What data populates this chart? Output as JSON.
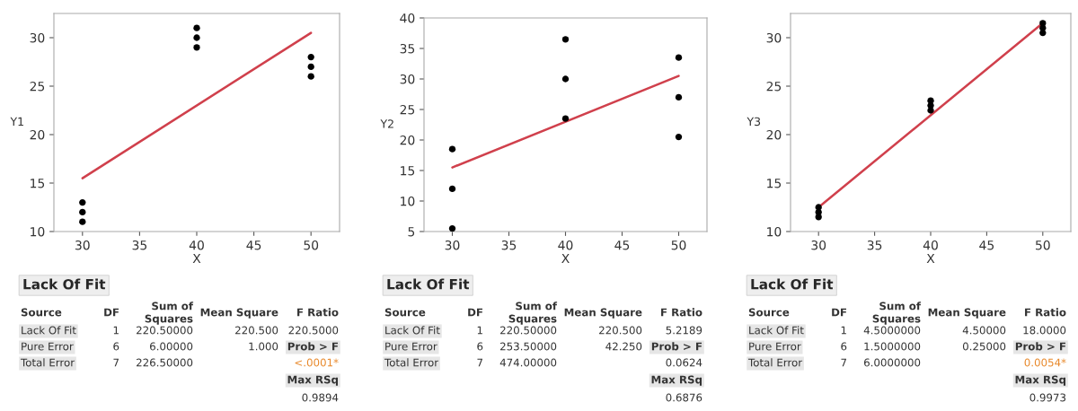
{
  "chart_data": [
    {
      "type": "scatter",
      "xlabel": "X",
      "ylabel": "Y1",
      "xlim": [
        27.5,
        52.5
      ],
      "xticks": [
        30,
        35,
        40,
        45,
        50
      ],
      "ylim": [
        10,
        32.5
      ],
      "yticks": [
        10,
        15,
        20,
        25,
        30
      ],
      "grid": false,
      "legend": false,
      "series": [
        {
          "color": "#000000",
          "x": [
            30,
            30,
            30,
            40,
            40,
            40,
            50,
            50,
            50
          ],
          "values": [
            11,
            12,
            13,
            29,
            30,
            31,
            26,
            27,
            28
          ]
        },
        {
          "type": "line",
          "color": "#d0404c",
          "x": [
            30,
            50
          ],
          "values": [
            15.5,
            30.5
          ]
        }
      ],
      "annotations": [
        "Lack Of Fit",
        "Source",
        "DF",
        "Sum of\nSquares",
        "Mean Square",
        "F Ratio",
        "Lack Of Fit",
        "1",
        "220.50000",
        "220.500",
        "220.5000",
        "Pure Error",
        "6",
        "6.00000",
        "1.000",
        "Prob > F",
        "Total Error",
        "7",
        "226.50000",
        "<.0001*",
        "Max RSq",
        "0.9894"
      ]
    },
    {
      "type": "scatter",
      "xlabel": "X",
      "ylabel": "Y2",
      "xlim": [
        27.5,
        52.5
      ],
      "xticks": [
        30,
        35,
        40,
        45,
        50
      ],
      "ylim": [
        5,
        40
      ],
      "yticks": [
        5,
        10,
        15,
        20,
        25,
        30,
        35,
        40
      ],
      "grid": false,
      "legend": false,
      "series": [
        {
          "color": "#000000",
          "x": [
            30,
            30,
            30,
            40,
            40,
            40,
            50,
            50,
            50
          ],
          "values": [
            5.5,
            12,
            18.5,
            23.5,
            30,
            36.5,
            20.5,
            27,
            33.5
          ]
        },
        {
          "type": "line",
          "color": "#d0404c",
          "x": [
            30,
            50
          ],
          "values": [
            15.5,
            30.5
          ]
        }
      ],
      "annotations": [
        "Lack Of Fit",
        "Source",
        "DF",
        "Sum of\nSquares",
        "Mean Square",
        "F Ratio",
        "Lack Of Fit",
        "1",
        "220.50000",
        "220.500",
        "5.2189",
        "Pure Error",
        "6",
        "253.50000",
        "42.250",
        "Prob > F",
        "Total Error",
        "7",
        "474.00000",
        "0.0624",
        "Max RSq",
        "0.6876"
      ]
    },
    {
      "type": "scatter",
      "xlabel": "X",
      "ylabel": "Y3",
      "xlim": [
        27.5,
        52.5
      ],
      "xticks": [
        30,
        35,
        40,
        45,
        50
      ],
      "ylim": [
        10,
        32.5
      ],
      "yticks": [
        10,
        15,
        20,
        25,
        30
      ],
      "grid": false,
      "legend": false,
      "series": [
        {
          "color": "#000000",
          "x": [
            30,
            30,
            30,
            40,
            40,
            40,
            50,
            50,
            50
          ],
          "values": [
            11.5,
            12,
            12.5,
            22.5,
            23,
            23.5,
            30.5,
            31,
            31.5
          ]
        },
        {
          "type": "line",
          "color": "#d0404c",
          "x": [
            30,
            50
          ],
          "values": [
            12.5,
            31.5
          ]
        }
      ],
      "annotations": [
        "Lack Of Fit",
        "Source",
        "DF",
        "Sum of\nSquares",
        "Mean Square",
        "F Ratio",
        "Lack Of Fit",
        "1",
        "4.5000000",
        "4.50000",
        "18.0000",
        "Pure Error",
        "6",
        "1.5000000",
        "0.25000",
        "Prob > F",
        "Total Error",
        "7",
        "6.0000000",
        "0.0054*",
        "Max RSq",
        "0.9973"
      ]
    }
  ]
}
